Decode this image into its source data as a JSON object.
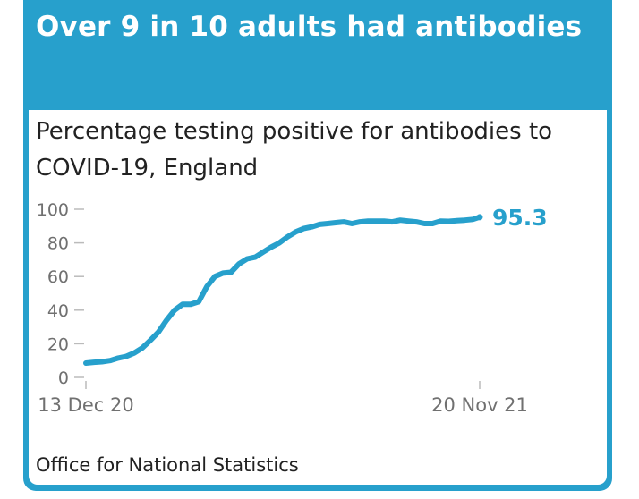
{
  "headline": "Over 9 in 10 adults had antibodies",
  "source": "Office for National Statistics",
  "colors": {
    "brand": "#27a0cc",
    "line": "#27a0cc",
    "text": "#222222",
    "axis": "#707070",
    "panel": "#ffffff"
  },
  "chart_data": {
    "type": "line",
    "title": "Percentage testing positive for antibodies to COVID-19, England",
    "xlabel": "",
    "ylabel": "",
    "ylim": [
      0,
      100
    ],
    "yticks": [
      0,
      20,
      40,
      60,
      80,
      100
    ],
    "xticks": [
      {
        "label": "13 Dec 20",
        "date": "2020-12-13"
      },
      {
        "label": "20 Nov 21",
        "date": "2021-11-20"
      }
    ],
    "grid": false,
    "legend": "none",
    "end_label": "95.3",
    "series": [
      {
        "x": [
          "2020-12-13",
          "2020-12-20",
          "2020-12-27",
          "2021-01-03",
          "2021-01-10",
          "2021-01-17",
          "2021-01-24",
          "2021-01-31",
          "2021-02-07",
          "2021-02-14",
          "2021-02-21",
          "2021-02-28",
          "2021-03-07",
          "2021-03-14",
          "2021-03-21",
          "2021-03-28",
          "2021-04-04",
          "2021-04-11",
          "2021-04-18",
          "2021-04-25",
          "2021-05-02",
          "2021-05-09",
          "2021-05-16",
          "2021-05-23",
          "2021-05-30",
          "2021-06-06",
          "2021-06-13",
          "2021-06-20",
          "2021-06-27",
          "2021-07-04",
          "2021-07-11",
          "2021-07-18",
          "2021-07-25",
          "2021-08-01",
          "2021-08-08",
          "2021-08-15",
          "2021-08-22",
          "2021-08-29",
          "2021-09-05",
          "2021-09-12",
          "2021-09-19",
          "2021-09-26",
          "2021-10-03",
          "2021-10-10",
          "2021-10-17",
          "2021-10-24",
          "2021-10-31",
          "2021-11-07",
          "2021-11-14",
          "2021-11-20"
        ],
        "y": [
          8.5,
          9.0,
          9.3,
          10.0,
          11.5,
          12.5,
          14.5,
          17.5,
          22.0,
          27.0,
          34.0,
          40.0,
          43.5,
          43.5,
          45.0,
          54.0,
          60.0,
          62.0,
          62.5,
          67.5,
          70.5,
          71.5,
          74.5,
          77.5,
          80.0,
          83.5,
          86.5,
          88.5,
          89.5,
          91.0,
          91.5,
          92.0,
          92.5,
          91.5,
          92.5,
          93.0,
          93.0,
          93.0,
          92.5,
          93.5,
          93.0,
          92.5,
          91.5,
          91.5,
          93.0,
          92.8,
          93.2,
          93.5,
          94.0,
          95.3
        ]
      }
    ]
  }
}
